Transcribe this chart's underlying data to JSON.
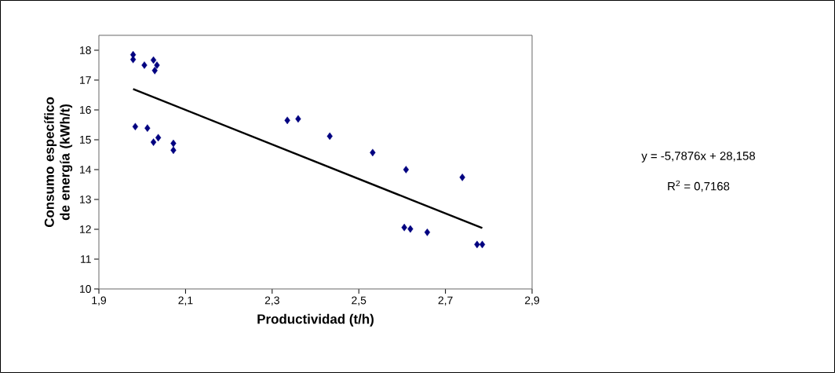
{
  "chart_data": {
    "type": "scatter",
    "xlabel": "Productividad (t/h)",
    "ylabel": "Consumo específico de energía (kWh/t)",
    "xlim": [
      1.9,
      2.9
    ],
    "ylim": [
      10,
      18.5
    ],
    "xticks": [
      {
        "value": 1.9,
        "label": "1,9"
      },
      {
        "value": 2.1,
        "label": "2,1"
      },
      {
        "value": 2.3,
        "label": "2,3"
      },
      {
        "value": 2.5,
        "label": "2,5"
      },
      {
        "value": 2.7,
        "label": "2,7"
      },
      {
        "value": 2.9,
        "label": "2,9"
      }
    ],
    "yticks": [
      10,
      11,
      12,
      13,
      14,
      15,
      16,
      17,
      18
    ],
    "grid": false,
    "series": [
      {
        "marker": "diamond",
        "color": "#000080",
        "x": [
          1.979,
          1.979,
          2.005,
          2.026,
          2.034,
          2.029,
          1.984,
          2.012,
          2.026,
          2.037,
          2.072,
          2.072,
          2.335,
          2.36,
          2.433,
          2.532,
          2.609,
          2.739,
          2.605,
          2.619,
          2.658,
          2.773,
          2.785
        ],
        "values": [
          17.85,
          17.69,
          17.5,
          17.67,
          17.5,
          17.32,
          15.44,
          15.39,
          14.92,
          15.07,
          14.88,
          14.65,
          15.65,
          15.7,
          15.12,
          14.57,
          14.0,
          13.74,
          12.06,
          12.01,
          11.9,
          11.49,
          11.49
        ]
      },
      {
        "type": "line",
        "marker": "none",
        "color": "#000000",
        "x": [
          1.979,
          2.785
        ],
        "values": [
          16.7,
          12.04
        ]
      }
    ],
    "annotations": [
      "y = -5,7876x + 28,158",
      "R$^{2}$ = 0,7168"
    ]
  }
}
